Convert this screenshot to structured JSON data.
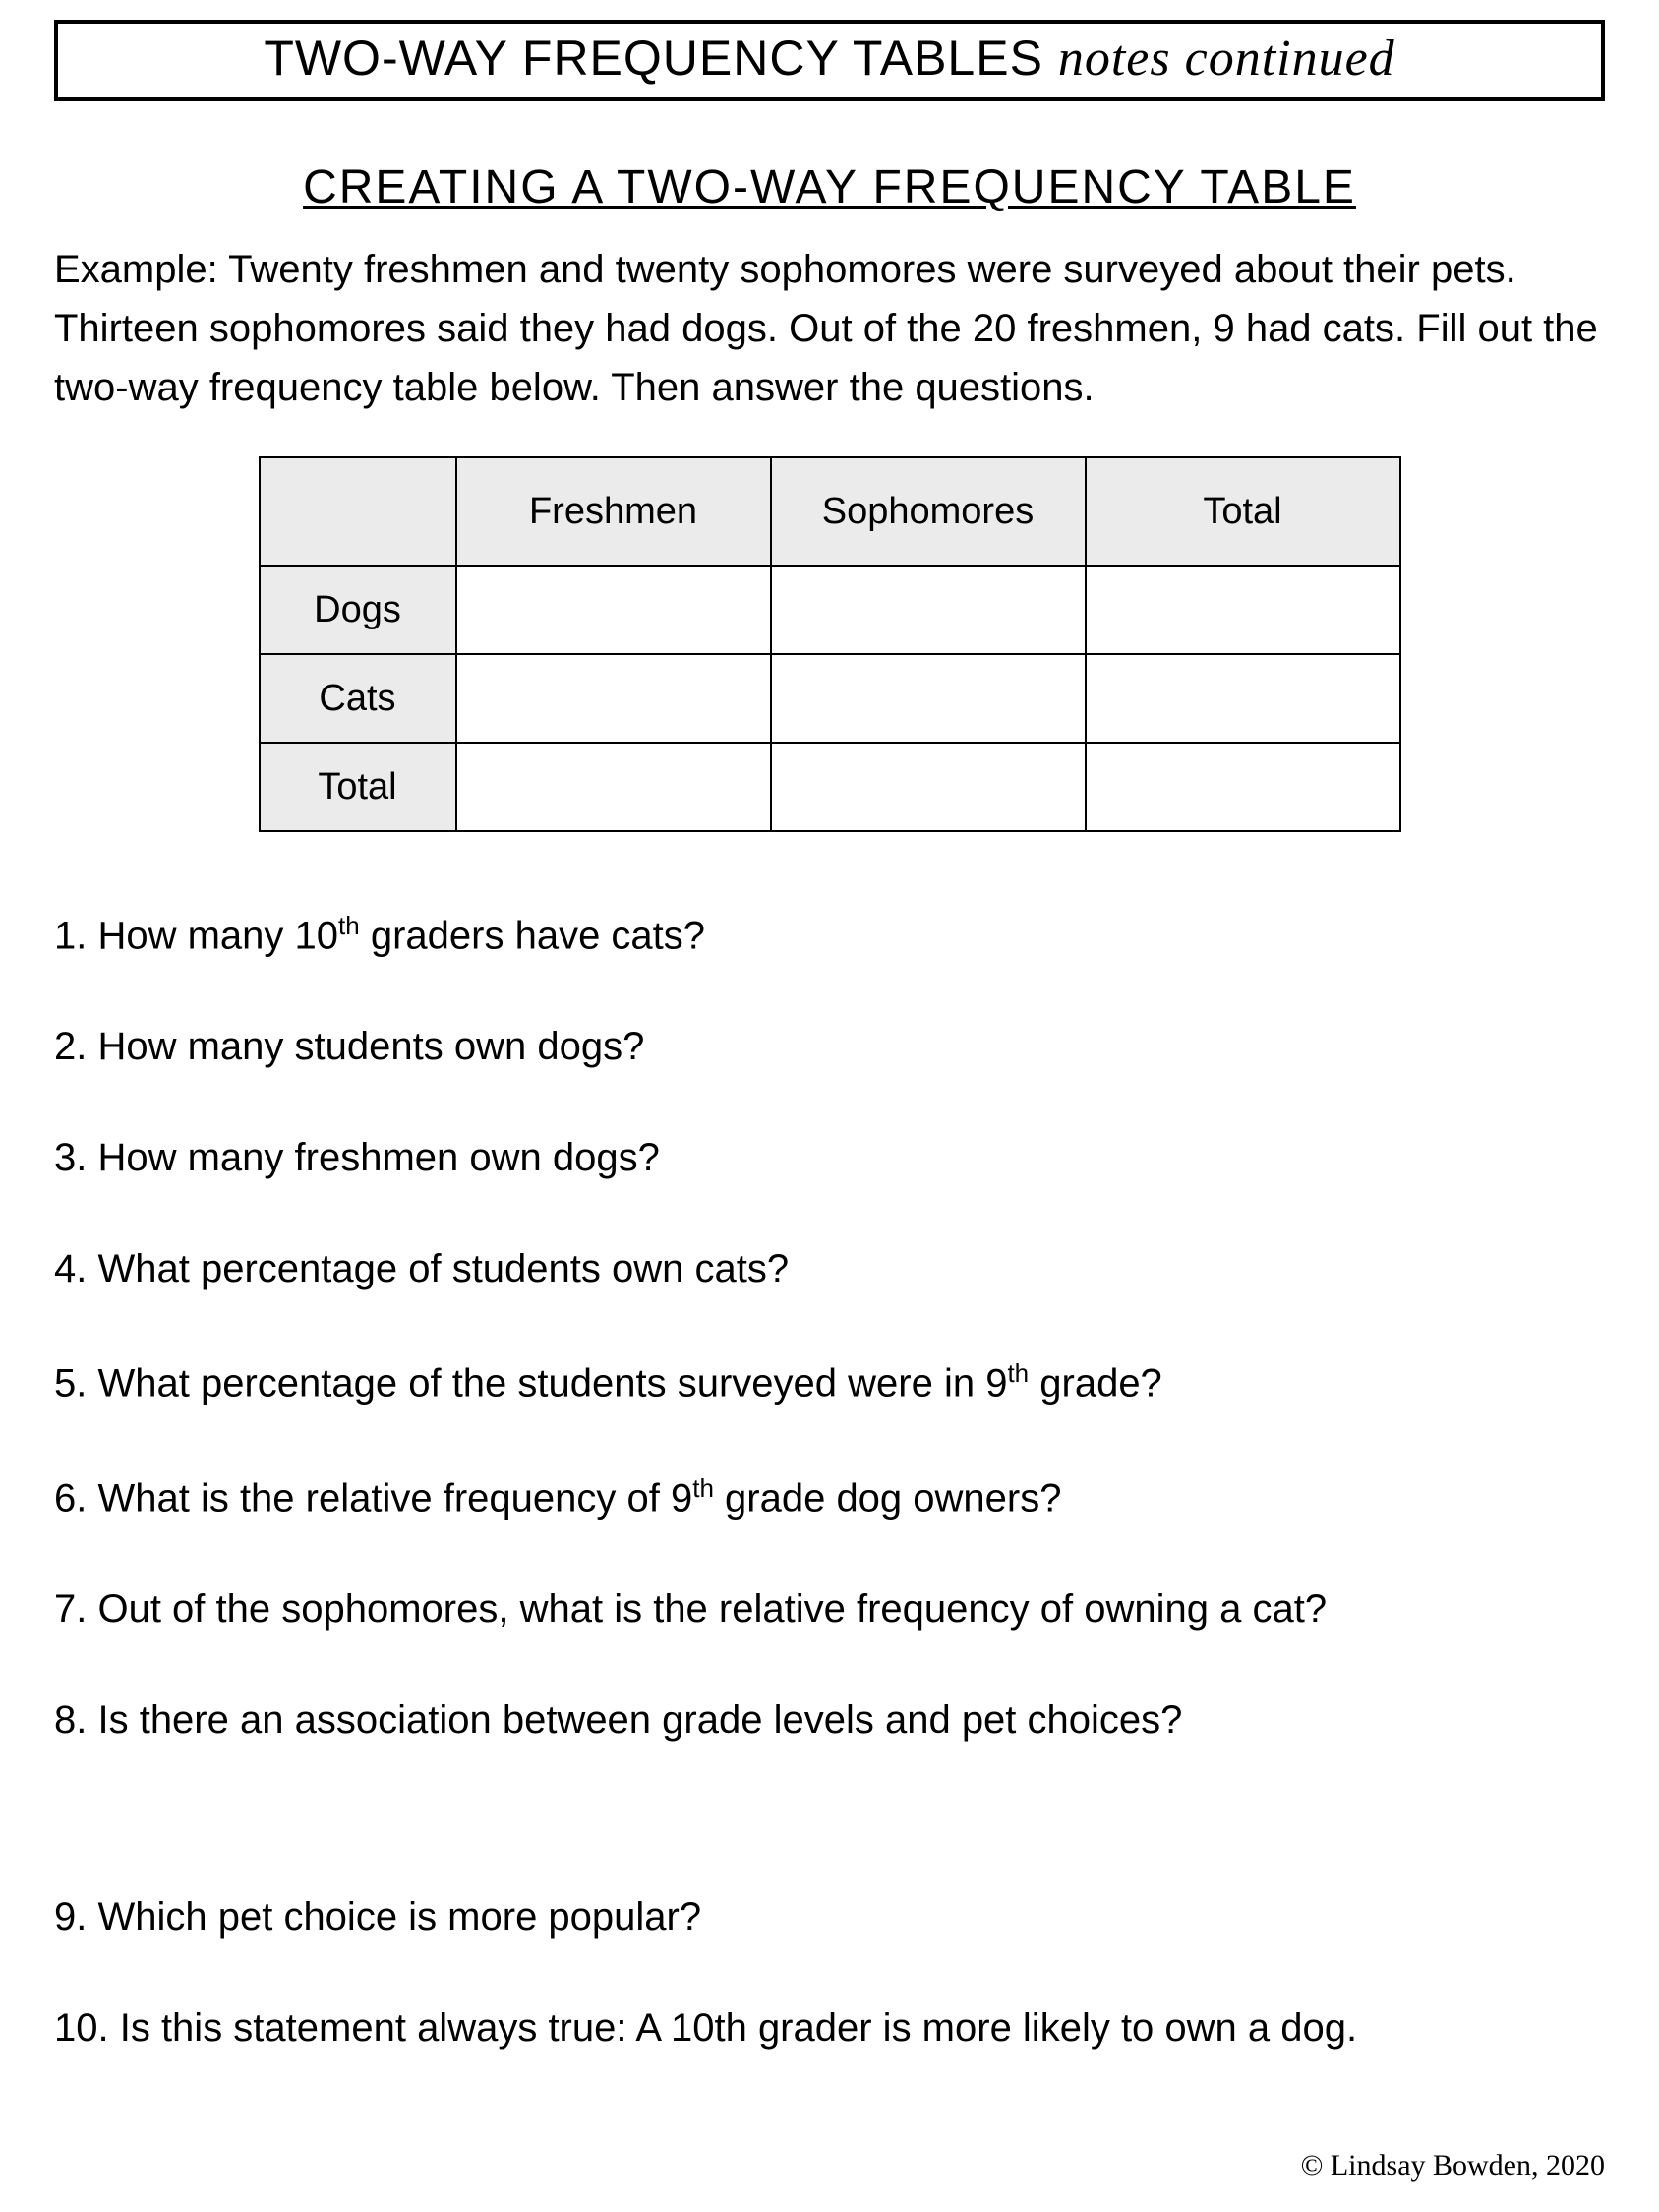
{
  "header": {
    "caps": "TWO-WAY FREQUENCY TABLES",
    "script": "notes continued"
  },
  "section_title": "CREATING A TWO-WAY FREQUENCY TABLE",
  "example": "Example: Twenty freshmen and twenty sophomores were surveyed about their pets. Thirteen sophomores said they had dogs.  Out of the 20 freshmen, 9 had cats. Fill out the two-way frequency table below. Then answer the questions.",
  "table": {
    "col_headers": [
      "Freshmen",
      "Sophomores",
      "Total"
    ],
    "row_labels": [
      "Dogs",
      "Cats",
      "Total"
    ],
    "cells": [
      [
        "",
        "",
        ""
      ],
      [
        "",
        "",
        ""
      ],
      [
        "",
        "",
        ""
      ]
    ],
    "header_bg": "#ebebeb",
    "cell_bg": "#ffffff",
    "border_color": "#000000"
  },
  "questions": [
    {
      "n": "1.",
      "text_before": "How many 10",
      "sup": "th",
      "text_after": " graders have cats?"
    },
    {
      "n": "2.",
      "text_before": "How many students own dogs?",
      "sup": "",
      "text_after": ""
    },
    {
      "n": "3.",
      "text_before": "How many freshmen own dogs?",
      "sup": "",
      "text_after": ""
    },
    {
      "n": "4.",
      "text_before": "What percentage of students own cats?",
      "sup": "",
      "text_after": ""
    },
    {
      "n": "5.",
      "text_before": "What percentage of the students surveyed were in 9",
      "sup": "th",
      "text_after": " grade?"
    },
    {
      "n": "6.",
      "text_before": "What is the relative frequency of 9",
      "sup": "th",
      "text_after": " grade dog owners?"
    },
    {
      "n": "7.",
      "text_before": "Out of the sophomores, what is the relative frequency of owning a cat?",
      "sup": "",
      "text_after": ""
    },
    {
      "n": "8.",
      "text_before": "Is there an association between grade levels and pet choices?",
      "sup": "",
      "text_after": "",
      "gap_large": true
    },
    {
      "n": "9.",
      "text_before": "Which pet choice is more popular?",
      "sup": "",
      "text_after": ""
    },
    {
      "n": "10.",
      "text_before": "Is this statement always true: A 10th grader is more likely to own a dog.",
      "sup": "",
      "text_after": ""
    }
  ],
  "footer": "© Lindsay Bowden, 2020"
}
